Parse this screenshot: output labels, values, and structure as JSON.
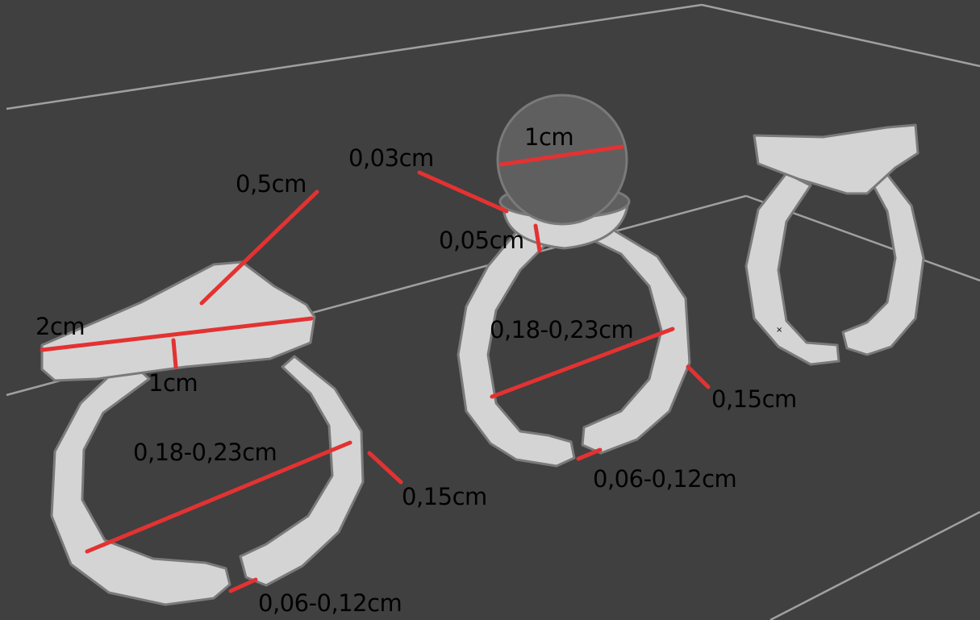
{
  "colors": {
    "background": "#404040",
    "ring_fill": "#d4d4d4",
    "ring_outline": "#7a7a7a",
    "grid_line": "#a0a0a0",
    "sphere": "#5f5f5f",
    "measure_line": "#e33232",
    "label_text": "#000000"
  },
  "rings": {
    "left": {
      "top_width": "2cm",
      "top_height": "1cm",
      "peak": "0,5cm",
      "inner_diameter": "0,18-0,23cm",
      "band_thickness": "0,15cm",
      "gap": "0,06-0,12cm"
    },
    "middle": {
      "sphere_diameter": "1cm",
      "cup_rim": "0,03cm",
      "cup_height": "0,05cm",
      "inner_diameter": "0,18-0,23cm",
      "band_thickness": "0,15cm",
      "gap": "0,06-0,12cm"
    }
  }
}
